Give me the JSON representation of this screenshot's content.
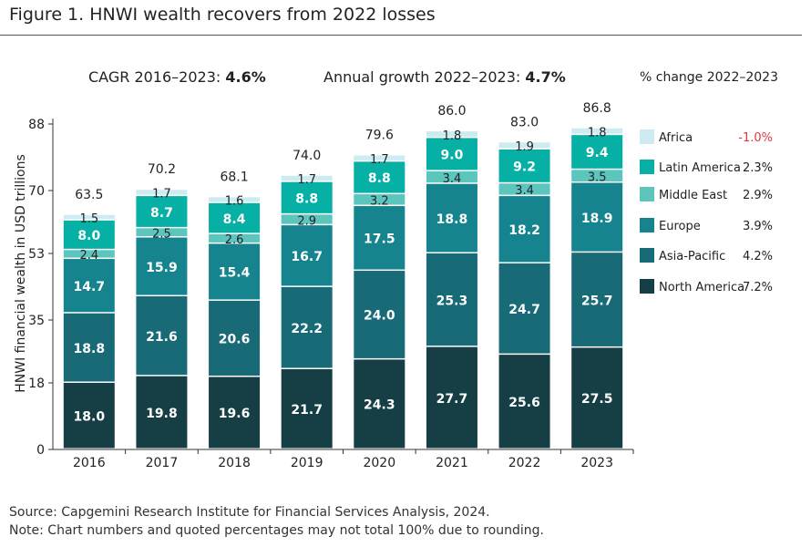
{
  "figure_title": "Figure 1. HNWI wealth recovers from 2022 losses",
  "footer": {
    "source": "Source: Capgemini Research Institute for Financial Services Analysis, 2024.",
    "note": "Note: Chart numbers and quoted percentages may not total 100% due to rounding."
  },
  "colors": {
    "North America": "#153e45",
    "Asia-Pacific": "#176a76",
    "Europe": "#16848e",
    "Middle East": "#5cc6be",
    "Latin America": "#07b0a4",
    "Africa": "#cdebf0",
    "negative_change": "#e0393e"
  },
  "chart_data": {
    "type": "bar",
    "stacked": true,
    "title": "HNWI wealth recovers from 2022 losses",
    "ylabel": "HNWI financial wealth in USD trillions",
    "xlabel": "",
    "ylim": [
      0,
      88
    ],
    "yticks": [
      0,
      18,
      35,
      53,
      70,
      88
    ],
    "categories": [
      "2016",
      "2017",
      "2018",
      "2019",
      "2020",
      "2021",
      "2022",
      "2023"
    ],
    "series": [
      {
        "name": "North America",
        "change": "7.2%",
        "values": [
          18.0,
          19.8,
          19.6,
          21.7,
          24.3,
          27.7,
          25.6,
          27.5
        ]
      },
      {
        "name": "Asia-Pacific",
        "change": "4.2%",
        "values": [
          18.8,
          21.6,
          20.6,
          22.2,
          24.0,
          25.3,
          24.7,
          25.7
        ]
      },
      {
        "name": "Europe",
        "change": "3.9%",
        "values": [
          14.7,
          15.9,
          15.4,
          16.7,
          17.5,
          18.8,
          18.2,
          18.9
        ]
      },
      {
        "name": "Middle East",
        "change": "2.9%",
        "values": [
          2.4,
          2.5,
          2.6,
          2.9,
          3.2,
          3.4,
          3.4,
          3.5
        ]
      },
      {
        "name": "Latin America",
        "change": "2.3%",
        "values": [
          8.0,
          8.7,
          8.4,
          8.8,
          8.8,
          9.0,
          9.2,
          9.4
        ]
      },
      {
        "name": "Africa",
        "change": "-1.0%",
        "values": [
          1.5,
          1.7,
          1.6,
          1.7,
          1.7,
          1.8,
          1.9,
          1.8
        ]
      }
    ],
    "totals": [
      63.5,
      70.2,
      68.1,
      74.0,
      79.6,
      86.0,
      83.0,
      86.8
    ],
    "legend_order": [
      "Africa",
      "Latin America",
      "Middle East",
      "Europe",
      "Asia-Pacific",
      "North America"
    ],
    "legend_header": "% change 2022–2023",
    "legend_position": "right",
    "annotations": {
      "cagr_label": "CAGR 2016–2023: ",
      "cagr_value": "4.6%",
      "growth_label": "Annual growth 2022–2023: ",
      "growth_value": "4.7%"
    }
  }
}
